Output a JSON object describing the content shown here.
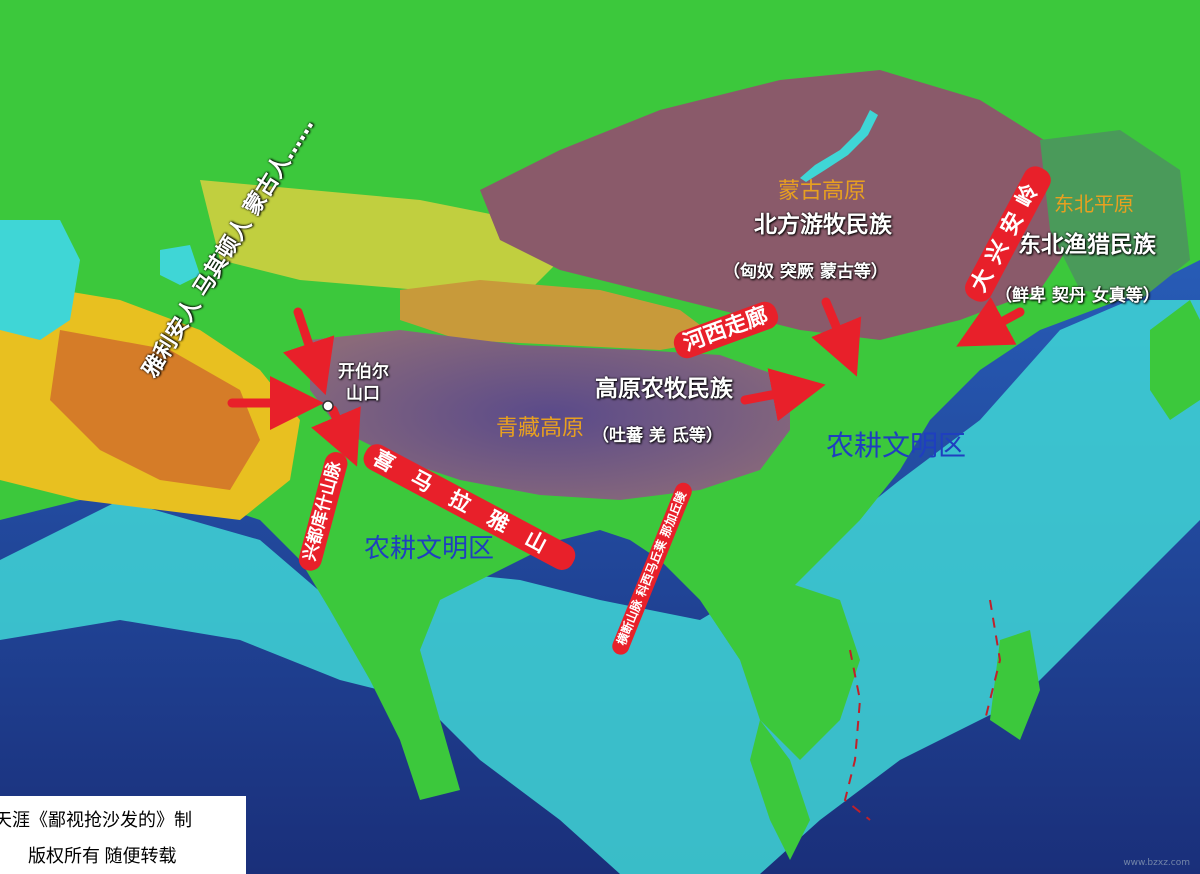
{
  "regions": {
    "mongolia_plateau": "蒙古高原",
    "northeast_plain": "东北平原",
    "qinghai_tibet_plateau": "青藏高原",
    "farming_civ_china": "农耕文明区",
    "farming_civ_india": "农耕文明区"
  },
  "peoples": {
    "northern_nomads": "北方游牧民族",
    "northern_nomads_examples": "（匈奴 突厥 蒙古等）",
    "northeast_hunters": "东北渔猎民族",
    "northeast_hunters_examples": "（鲜卑 契丹 女真等）",
    "plateau_farmers": "高原农牧民族",
    "plateau_farmers_examples": "（吐蕃 羌 氐等）",
    "western_invaders": "雅利安人  马其顿人  蒙古人……"
  },
  "features": {
    "khyber_pass_1": "开伯尔",
    "khyber_pass_2": "山口",
    "hexi_corridor": "河西走廊",
    "greater_khingan": "大兴安岭",
    "hindu_kush": "兴都库什山脉",
    "himalaya": "喜马拉雅山",
    "hengduan": "横断山脉 科西马丘莱 那加丘陵"
  },
  "credit": {
    "line1": "天涯《鄙视抢沙发的》制",
    "line2": "版权所有  随便转载"
  },
  "watermark": "www.bzxz.com",
  "colors": {
    "ocean_deep": "#1a3f9a",
    "ocean_shallow": "#3fd6d6",
    "lowland": "#3cc83c",
    "upland": "#e8c020",
    "plateau": "#7a5a8a",
    "arrow": "#e8202a",
    "accent_orange": "#e8a020",
    "accent_blue": "#1f3fbf"
  }
}
